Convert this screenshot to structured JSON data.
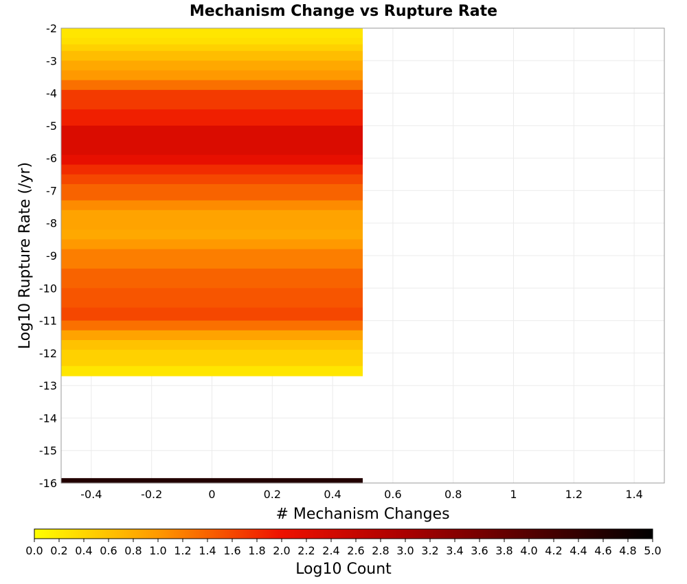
{
  "chart_data": {
    "type": "heatmap",
    "title": "Mechanism Change vs Rupture Rate",
    "xlabel": "# Mechanism Changes",
    "ylabel": "Log10 Rupture Rate (/yr)",
    "xlim": [
      -0.5,
      1.5
    ],
    "ylim": [
      -16,
      -2
    ],
    "x_ticks": [
      "-0.4",
      "-0.2",
      "0",
      "0.2",
      "0.4",
      "0.6",
      "0.8",
      "1",
      "1.2",
      "1.4"
    ],
    "y_ticks": [
      "-2",
      "-3",
      "-4",
      "-5",
      "-6",
      "-7",
      "-8",
      "-9",
      "-10",
      "-11",
      "-12",
      "-13",
      "-14",
      "-15",
      "-16"
    ],
    "grid": true,
    "colorbar": {
      "label": "Log10 Count",
      "min": 0.0,
      "max": 5.0,
      "ticks": [
        "0.0",
        "0.2",
        "0.4",
        "0.6",
        "0.8",
        "1.0",
        "1.2",
        "1.4",
        "1.6",
        "1.8",
        "2.0",
        "2.2",
        "2.4",
        "2.6",
        "2.8",
        "3.0",
        "3.2",
        "3.4",
        "3.6",
        "3.8",
        "4.0",
        "4.2",
        "4.4",
        "4.6",
        "4.8",
        "5.0"
      ],
      "colors": [
        "#ffff00",
        "#ff9900",
        "#ee1100",
        "#aa0000",
        "#550000",
        "#000000"
      ]
    },
    "cells": [
      {
        "x": 0,
        "y0": -2.0,
        "y1": -2.3,
        "value": 0.25
      },
      {
        "x": 0,
        "y0": -2.3,
        "y1": -2.5,
        "value": 0.3
      },
      {
        "x": 0,
        "y0": -2.5,
        "y1": -2.7,
        "value": 0.45
      },
      {
        "x": 0,
        "y0": -2.7,
        "y1": -3.0,
        "value": 0.65
      },
      {
        "x": 0,
        "y0": -3.0,
        "y1": -3.3,
        "value": 0.85
      },
      {
        "x": 0,
        "y0": -3.3,
        "y1": -3.6,
        "value": 1.0
      },
      {
        "x": 0,
        "y0": -3.6,
        "y1": -3.9,
        "value": 1.3
      },
      {
        "x": 0,
        "y0": -3.9,
        "y1": -4.5,
        "value": 1.7
      },
      {
        "x": 0,
        "y0": -4.5,
        "y1": -5.0,
        "value": 1.9
      },
      {
        "x": 0,
        "y0": -5.0,
        "y1": -5.9,
        "value": 2.3
      },
      {
        "x": 0,
        "y0": -5.9,
        "y1": -6.2,
        "value": 2.1
      },
      {
        "x": 0,
        "y0": -6.2,
        "y1": -6.5,
        "value": 1.8
      },
      {
        "x": 0,
        "y0": -6.5,
        "y1": -6.8,
        "value": 1.6
      },
      {
        "x": 0,
        "y0": -6.8,
        "y1": -7.3,
        "value": 1.4
      },
      {
        "x": 0,
        "y0": -7.3,
        "y1": -7.6,
        "value": 1.1
      },
      {
        "x": 0,
        "y0": -7.6,
        "y1": -8.2,
        "value": 0.9
      },
      {
        "x": 0,
        "y0": -8.2,
        "y1": -8.5,
        "value": 0.85
      },
      {
        "x": 0,
        "y0": -8.5,
        "y1": -8.8,
        "value": 1.0
      },
      {
        "x": 0,
        "y0": -8.8,
        "y1": -9.4,
        "value": 1.2
      },
      {
        "x": 0,
        "y0": -9.4,
        "y1": -10.0,
        "value": 1.4
      },
      {
        "x": 0,
        "y0": -10.0,
        "y1": -10.6,
        "value": 1.5
      },
      {
        "x": 0,
        "y0": -10.6,
        "y1": -11.0,
        "value": 1.6
      },
      {
        "x": 0,
        "y0": -11.0,
        "y1": -11.3,
        "value": 1.3
      },
      {
        "x": 0,
        "y0": -11.3,
        "y1": -11.6,
        "value": 0.9
      },
      {
        "x": 0,
        "y0": -11.6,
        "y1": -11.9,
        "value": 0.6
      },
      {
        "x": 0,
        "y0": -11.9,
        "y1": -12.4,
        "value": 0.45
      },
      {
        "x": 0,
        "y0": -12.4,
        "y1": -12.7,
        "value": 0.25
      },
      {
        "x": 0,
        "y0": -15.85,
        "y1": -16.0,
        "value": 4.6
      }
    ]
  }
}
